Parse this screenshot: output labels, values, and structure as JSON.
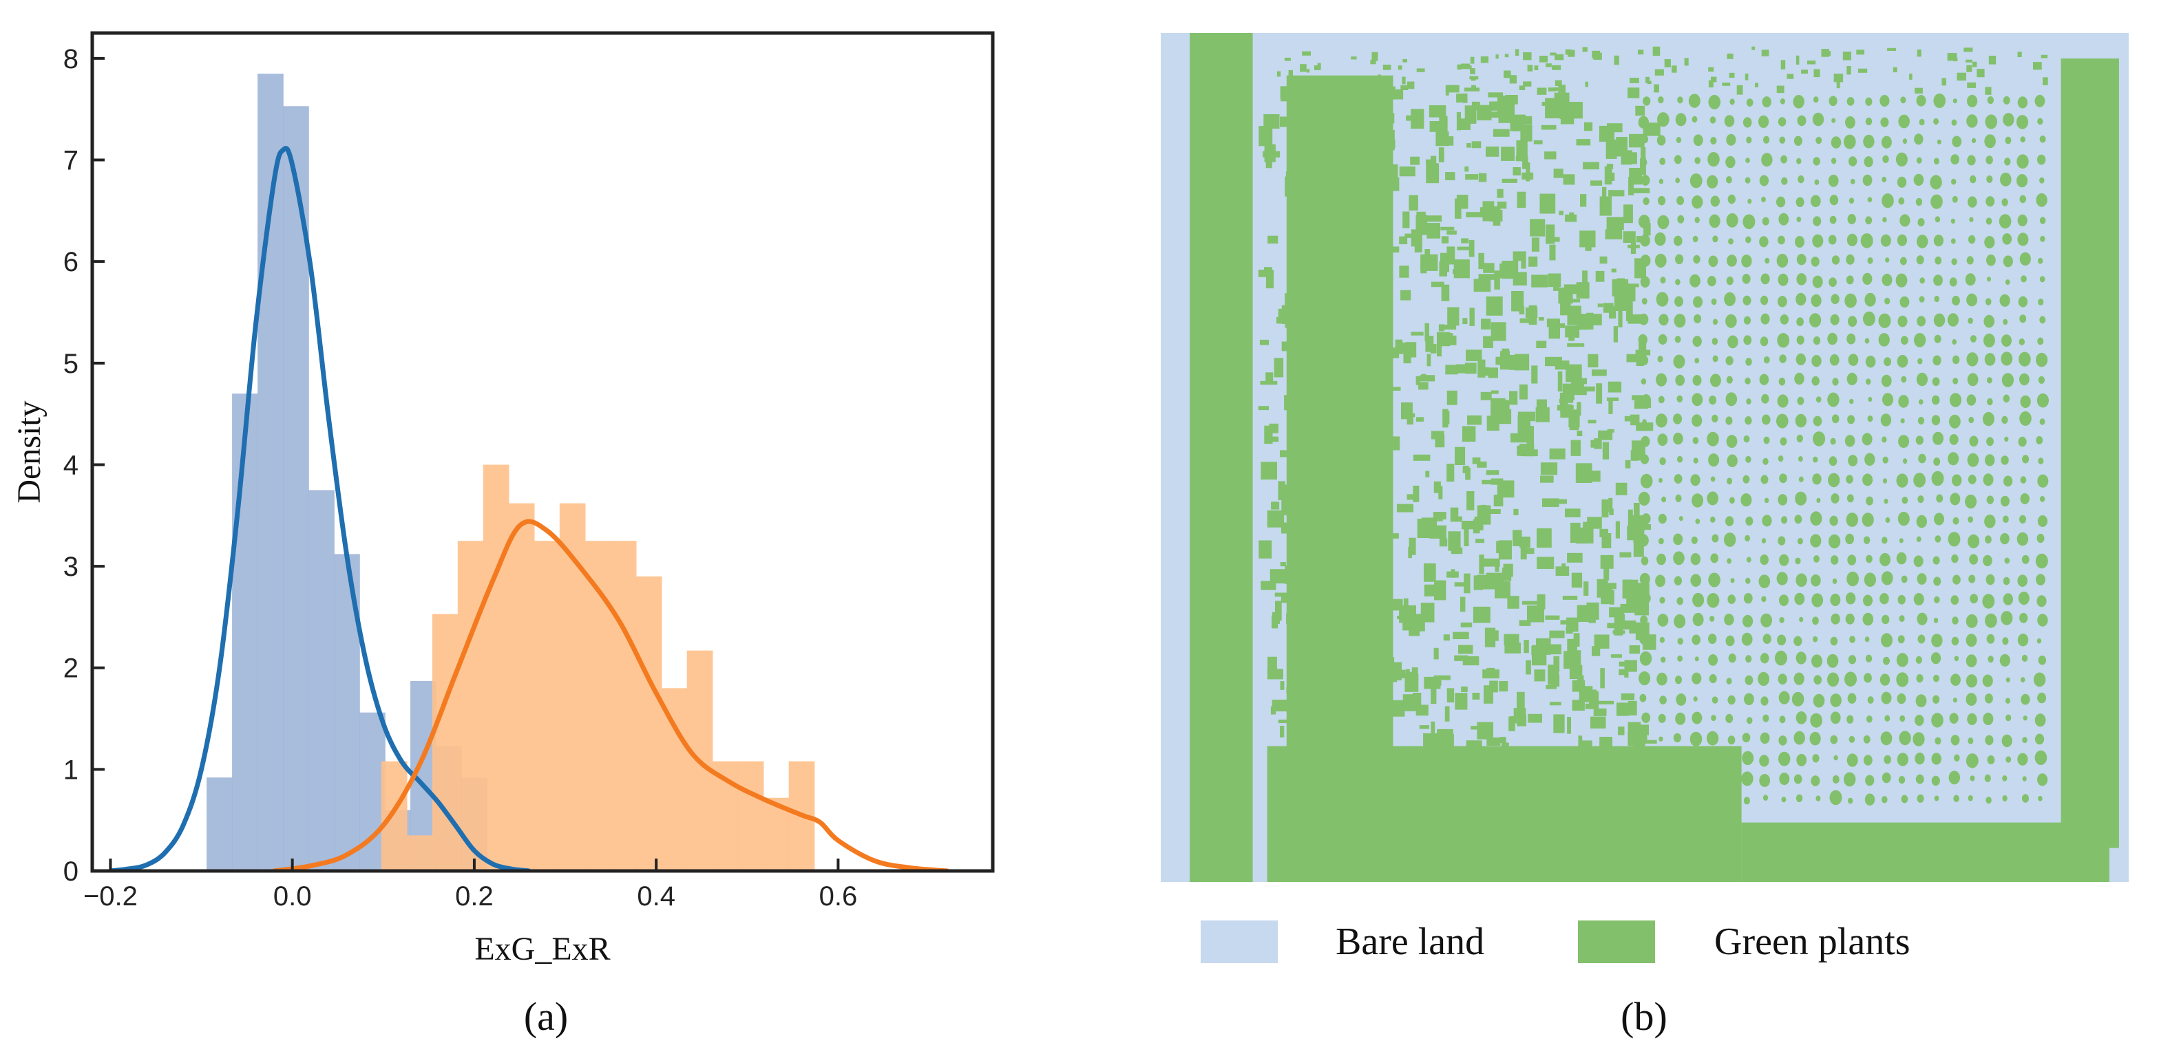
{
  "chart_data": [
    {
      "type": "bar",
      "xlabel": "ExG_ExR",
      "ylabel": "Density",
      "xlim": [
        -0.22,
        0.77
      ],
      "ylim": [
        0,
        8.25
      ],
      "xticks": [
        -0.2,
        0.0,
        0.2,
        0.4,
        0.6
      ],
      "xtick_labels": [
        "−0.2",
        "0.0",
        "0.2",
        "0.4",
        "0.6"
      ],
      "yticks": [
        0,
        1,
        2,
        3,
        4,
        5,
        6,
        7,
        8
      ],
      "ytick_labels": [
        "0",
        "1",
        "2",
        "3",
        "4",
        "5",
        "6",
        "7",
        "8"
      ],
      "caption": "(a)",
      "series": [
        {
          "color": "#9fb5d8",
          "kde_color": "#1f6fb0",
          "bar_width": 0.0285,
          "bars": [
            [
              -0.08,
              0.92
            ],
            [
              -0.052,
              4.7
            ],
            [
              -0.024,
              7.85
            ],
            [
              0.004,
              7.53
            ],
            [
              0.032,
              3.75
            ],
            [
              0.06,
              3.12
            ],
            [
              0.088,
              1.56
            ],
            [
              0.116,
              0.6
            ],
            [
              0.144,
              1.87
            ],
            [
              0.172,
              1.23
            ],
            [
              0.2,
              0.92
            ]
          ],
          "kde": [
            [
              -0.2,
              0.0
            ],
            [
              -0.18,
              0.02
            ],
            [
              -0.16,
              0.06
            ],
            [
              -0.14,
              0.18
            ],
            [
              -0.12,
              0.45
            ],
            [
              -0.1,
              1.0
            ],
            [
              -0.08,
              2.0
            ],
            [
              -0.06,
              3.55
            ],
            [
              -0.04,
              5.4
            ],
            [
              -0.02,
              6.8
            ],
            [
              -0.01,
              7.1
            ],
            [
              0.0,
              6.95
            ],
            [
              0.02,
              5.95
            ],
            [
              0.04,
              4.45
            ],
            [
              0.06,
              3.1
            ],
            [
              0.08,
              2.1
            ],
            [
              0.1,
              1.45
            ],
            [
              0.12,
              1.08
            ],
            [
              0.14,
              0.88
            ],
            [
              0.16,
              0.68
            ],
            [
              0.18,
              0.44
            ],
            [
              0.2,
              0.2
            ],
            [
              0.22,
              0.07
            ],
            [
              0.24,
              0.02
            ],
            [
              0.26,
              0.0
            ]
          ]
        },
        {
          "color": "#ffc08a",
          "kde_color": "#f47a20",
          "bar_width": 0.0285,
          "bars": [
            [
              0.112,
              1.08
            ],
            [
              0.14,
              0.35
            ],
            [
              0.168,
              2.53
            ],
            [
              0.196,
              3.25
            ],
            [
              0.224,
              4.0
            ],
            [
              0.252,
              3.62
            ],
            [
              0.28,
              3.25
            ],
            [
              0.308,
              3.62
            ],
            [
              0.336,
              3.25
            ],
            [
              0.364,
              3.25
            ],
            [
              0.392,
              2.9
            ],
            [
              0.42,
              1.8
            ],
            [
              0.448,
              2.17
            ],
            [
              0.476,
              1.08
            ],
            [
              0.504,
              1.08
            ],
            [
              0.532,
              0.72
            ],
            [
              0.56,
              1.08
            ]
          ],
          "kde": [
            [
              -0.02,
              0.0
            ],
            [
              0.02,
              0.05
            ],
            [
              0.06,
              0.16
            ],
            [
              0.1,
              0.45
            ],
            [
              0.14,
              1.05
            ],
            [
              0.18,
              1.95
            ],
            [
              0.22,
              2.85
            ],
            [
              0.25,
              3.4
            ],
            [
              0.28,
              3.35
            ],
            [
              0.32,
              2.95
            ],
            [
              0.36,
              2.45
            ],
            [
              0.4,
              1.75
            ],
            [
              0.44,
              1.15
            ],
            [
              0.48,
              0.88
            ],
            [
              0.52,
              0.7
            ],
            [
              0.56,
              0.55
            ],
            [
              0.58,
              0.48
            ],
            [
              0.6,
              0.3
            ],
            [
              0.64,
              0.1
            ],
            [
              0.68,
              0.03
            ],
            [
              0.72,
              0.0
            ]
          ]
        }
      ]
    },
    {
      "type": "heatmap",
      "description_classes": [
        "Bare land",
        "Green plants"
      ],
      "legend": [
        {
          "label": "Bare land",
          "color": "#c6d9ee"
        },
        {
          "label": "Green plants",
          "color": "#82c06b"
        }
      ],
      "caption": "(b)"
    }
  ]
}
